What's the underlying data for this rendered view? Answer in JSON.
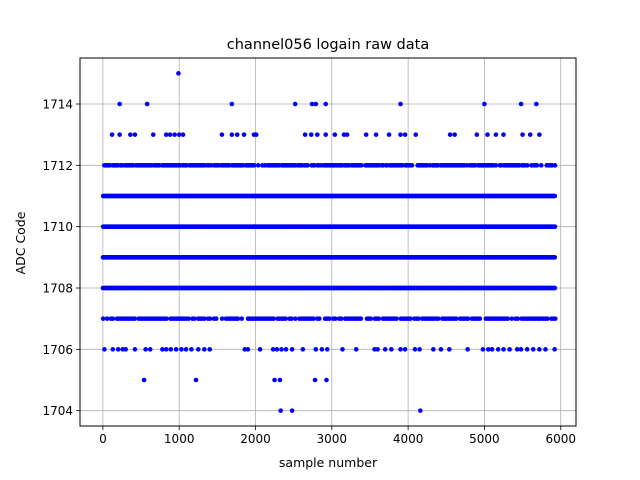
{
  "chart_data": {
    "type": "scatter",
    "title": "channel056 logain raw data",
    "xlabel": "sample number",
    "ylabel": "ADC Code",
    "xlim": [
      -300,
      6200
    ],
    "ylim": [
      1703.5,
      1715.5
    ],
    "xticks": [
      0,
      1000,
      2000,
      3000,
      4000,
      5000,
      6000
    ],
    "yticks": [
      1704,
      1706,
      1708,
      1710,
      1712,
      1714
    ],
    "grid": true,
    "marker_color": "#0000ff",
    "dense_levels": [
      1707,
      1708,
      1709,
      1710,
      1711,
      1712
    ],
    "dense_x_range": [
      0,
      5930
    ],
    "series": [
      {
        "points": [
          [
            2330,
            1704
          ],
          [
            2480,
            1704
          ],
          [
            4160,
            1704
          ],
          [
            540,
            1705
          ],
          [
            1220,
            1705
          ],
          [
            2250,
            1705
          ],
          [
            2320,
            1705
          ],
          [
            2780,
            1705
          ],
          [
            2930,
            1705
          ],
          [
            990,
            1715
          ],
          [
            220,
            1714
          ],
          [
            580,
            1714
          ],
          [
            1690,
            1714
          ],
          [
            2520,
            1714
          ],
          [
            2740,
            1714
          ],
          [
            2790,
            1714
          ],
          [
            2920,
            1714
          ],
          [
            3900,
            1714
          ],
          [
            5000,
            1714
          ],
          [
            5480,
            1714
          ],
          [
            5680,
            1714
          ],
          [
            120,
            1713
          ],
          [
            220,
            1713
          ],
          [
            360,
            1713
          ],
          [
            420,
            1713
          ],
          [
            660,
            1713
          ],
          [
            830,
            1713
          ],
          [
            880,
            1713
          ],
          [
            940,
            1713
          ],
          [
            1000,
            1713
          ],
          [
            1050,
            1713
          ],
          [
            1560,
            1713
          ],
          [
            1690,
            1713
          ],
          [
            1760,
            1713
          ],
          [
            1850,
            1713
          ],
          [
            1980,
            1713
          ],
          [
            2010,
            1713
          ],
          [
            2650,
            1713
          ],
          [
            2730,
            1713
          ],
          [
            2810,
            1713
          ],
          [
            2920,
            1713
          ],
          [
            3040,
            1713
          ],
          [
            3160,
            1713
          ],
          [
            3200,
            1713
          ],
          [
            3450,
            1713
          ],
          [
            3580,
            1713
          ],
          [
            3750,
            1713
          ],
          [
            3900,
            1713
          ],
          [
            3960,
            1713
          ],
          [
            4100,
            1713
          ],
          [
            4550,
            1713
          ],
          [
            4610,
            1713
          ],
          [
            4900,
            1713
          ],
          [
            5040,
            1713
          ],
          [
            5150,
            1713
          ],
          [
            5250,
            1713
          ],
          [
            5500,
            1713
          ],
          [
            5600,
            1713
          ],
          [
            5720,
            1713
          ],
          [
            20,
            1706
          ],
          [
            130,
            1706
          ],
          [
            200,
            1706
          ],
          [
            260,
            1706
          ],
          [
            300,
            1706
          ],
          [
            420,
            1706
          ],
          [
            560,
            1706
          ],
          [
            620,
            1706
          ],
          [
            780,
            1706
          ],
          [
            830,
            1706
          ],
          [
            890,
            1706
          ],
          [
            960,
            1706
          ],
          [
            1030,
            1706
          ],
          [
            1090,
            1706
          ],
          [
            1160,
            1706
          ],
          [
            1250,
            1706
          ],
          [
            1330,
            1706
          ],
          [
            1400,
            1706
          ],
          [
            1860,
            1706
          ],
          [
            1900,
            1706
          ],
          [
            2060,
            1706
          ],
          [
            2230,
            1706
          ],
          [
            2280,
            1706
          ],
          [
            2340,
            1706
          ],
          [
            2400,
            1706
          ],
          [
            2480,
            1706
          ],
          [
            2620,
            1706
          ],
          [
            2790,
            1706
          ],
          [
            2870,
            1706
          ],
          [
            2940,
            1706
          ],
          [
            3140,
            1706
          ],
          [
            3320,
            1706
          ],
          [
            3560,
            1706
          ],
          [
            3600,
            1706
          ],
          [
            3700,
            1706
          ],
          [
            3780,
            1706
          ],
          [
            3900,
            1706
          ],
          [
            3960,
            1706
          ],
          [
            4090,
            1706
          ],
          [
            4150,
            1706
          ],
          [
            4330,
            1706
          ],
          [
            4430,
            1706
          ],
          [
            4540,
            1706
          ],
          [
            4780,
            1706
          ],
          [
            4980,
            1706
          ],
          [
            5050,
            1706
          ],
          [
            5100,
            1706
          ],
          [
            5180,
            1706
          ],
          [
            5250,
            1706
          ],
          [
            5330,
            1706
          ],
          [
            5430,
            1706
          ],
          [
            5480,
            1706
          ],
          [
            5560,
            1706
          ],
          [
            5640,
            1706
          ],
          [
            5720,
            1706
          ],
          [
            5800,
            1706
          ],
          [
            5920,
            1706
          ]
        ]
      }
    ]
  }
}
